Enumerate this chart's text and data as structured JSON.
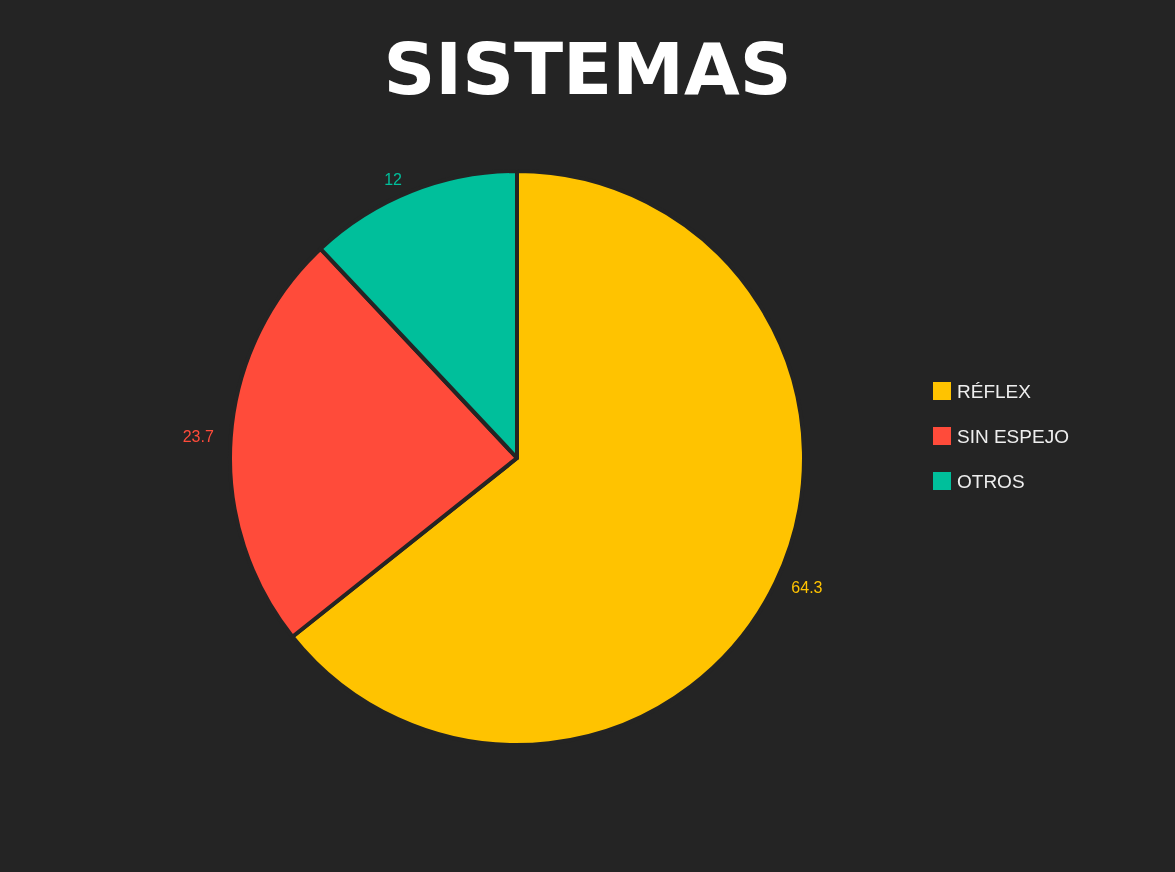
{
  "chart_data": {
    "type": "pie",
    "title": "SISTEMAS",
    "categories": [
      "RÉFLEX",
      "SIN ESPEJO",
      "OTROS"
    ],
    "values": [
      64.3,
      23.7,
      12
    ],
    "colors": [
      "#ffc300",
      "#ff4b3a",
      "#00bf9b"
    ],
    "data_labels": true,
    "legend": "right"
  }
}
